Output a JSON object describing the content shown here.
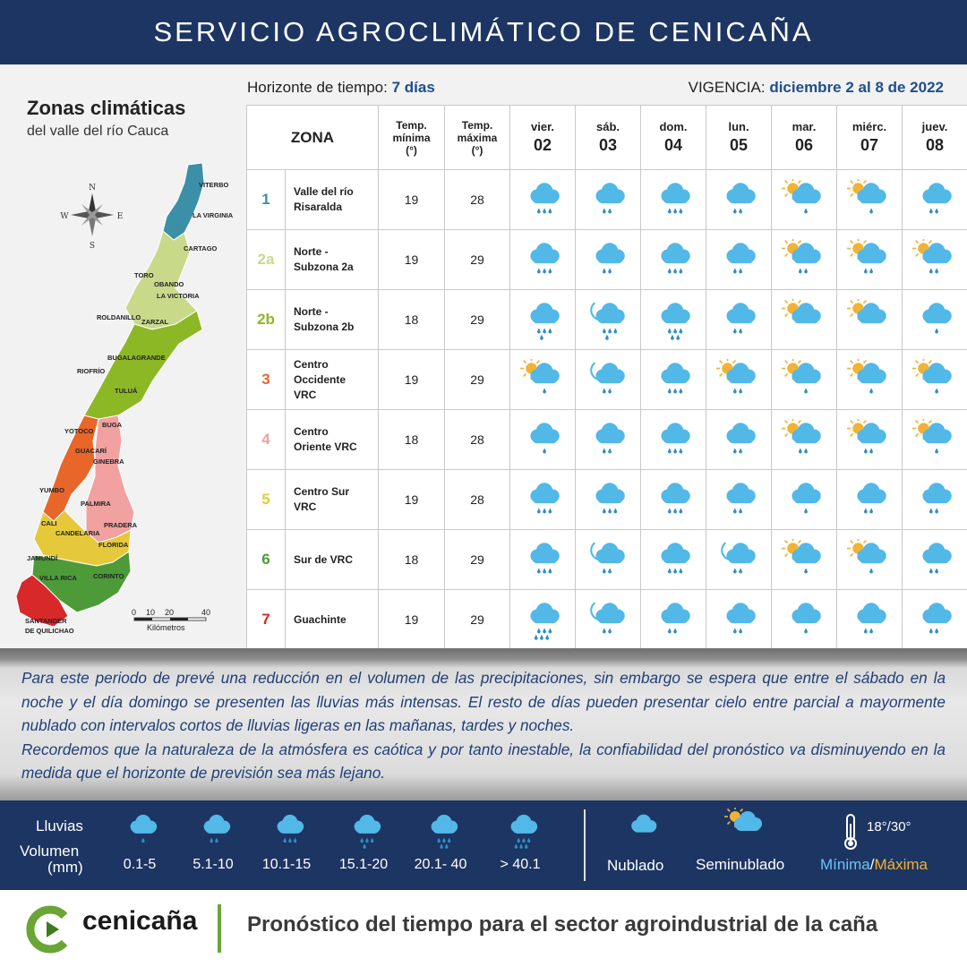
{
  "header": {
    "title": "SERVICIO AGROCLIMÁTICO DE CENICAÑA"
  },
  "map": {
    "title": "Zonas climáticas",
    "subtitle": "del valle del río Cauca",
    "compass": {
      "n": "N",
      "s": "S",
      "e": "E",
      "w": "W"
    },
    "places": [
      "VITERBO",
      "LA VIRGINIA",
      "CARTAGO",
      "TORO",
      "OBANDO",
      "LA VICTORIA",
      "ROLDANILLO",
      "ZARZAL",
      "BUGALAGRANDE",
      "RIOFRÍO",
      "TULUÁ",
      "BUGA",
      "YOTOCO",
      "GUACARÍ",
      "GINEBRA",
      "YUMBO",
      "PALMIRA",
      "CALI",
      "CANDELARIA",
      "PRADERA",
      "FLORIDA",
      "JAMUNDÍ",
      "VILLA RICA",
      "CORINTO",
      "SANTANDER",
      "DE QUILICHAO"
    ],
    "scale": {
      "ticks": [
        "0",
        "10",
        "20",
        "40"
      ],
      "unit": "Kilómetros"
    }
  },
  "horizon": {
    "label": "Horizonte de tiempo:",
    "value": "7 días"
  },
  "validity": {
    "label": "VIGENCIA:",
    "value": "diciembre 2 al 8 de 2022"
  },
  "table": {
    "headers": {
      "zona": "ZONA",
      "tmin": [
        "Temp.",
        "mínima",
        "(°)"
      ],
      "tmax": [
        "Temp.",
        "máxima",
        "(°)"
      ]
    },
    "days": [
      {
        "name": "vier.",
        "num": "02"
      },
      {
        "name": "sáb.",
        "num": "03"
      },
      {
        "name": "dom.",
        "num": "04"
      },
      {
        "name": "lun.",
        "num": "05"
      },
      {
        "name": "mar.",
        "num": "06"
      },
      {
        "name": "miérc.",
        "num": "07"
      },
      {
        "name": "juev.",
        "num": "08"
      }
    ],
    "rows": [
      {
        "id": "1",
        "color": "#3b8fa7",
        "name": [
          "Valle del río",
          "Risaralda"
        ],
        "tmin": "19",
        "tmax": "28",
        "icons": [
          "c3",
          "c2",
          "c3",
          "c2",
          "s1",
          "s1",
          "c2"
        ]
      },
      {
        "id": "2a",
        "color": "#c8d98a",
        "name": [
          "Norte -",
          "Subzona 2a"
        ],
        "tmin": "19",
        "tmax": "29",
        "icons": [
          "c3",
          "c2",
          "c3",
          "c2",
          "s2",
          "s2",
          "s2"
        ]
      },
      {
        "id": "2b",
        "color": "#8db825",
        "name": [
          "Norte -",
          "Subzona 2b"
        ],
        "tmin": "18",
        "tmax": "29",
        "icons": [
          "c4",
          "n4",
          "c5",
          "c2",
          "s0",
          "s0",
          "c1"
        ]
      },
      {
        "id": "3",
        "color": "#e8662a",
        "name": [
          "Centro",
          "Occidente",
          "VRC"
        ],
        "tmin": "19",
        "tmax": "29",
        "icons": [
          "s1",
          "n2",
          "c3",
          "s2",
          "s1",
          "s1",
          "s1"
        ]
      },
      {
        "id": "4",
        "color": "#f0a1a0",
        "name": [
          "Centro",
          "Oriente VRC"
        ],
        "tmin": "18",
        "tmax": "28",
        "icons": [
          "c1",
          "c2",
          "c3",
          "c2",
          "s2",
          "s2",
          "s1"
        ]
      },
      {
        "id": "5",
        "color": "#e6c93a",
        "name": [
          "Centro Sur",
          "VRC"
        ],
        "tmin": "19",
        "tmax": "28",
        "icons": [
          "c3",
          "c3",
          "c3",
          "c2",
          "c1",
          "c2",
          "c2"
        ]
      },
      {
        "id": "6",
        "color": "#4c9a38",
        "name": [
          "Sur de VRC"
        ],
        "tmin": "18",
        "tmax": "29",
        "icons": [
          "c3",
          "n2",
          "c3",
          "n2",
          "s1",
          "s1",
          "c2"
        ]
      },
      {
        "id": "7",
        "color": "#d7282a",
        "name": [
          "Guachinte"
        ],
        "tmin": "19",
        "tmax": "29",
        "icons": [
          "c6",
          "n2",
          "c2",
          "c2",
          "c1",
          "c2",
          "c2"
        ]
      }
    ]
  },
  "note": {
    "p1": "Para este periodo de prevé una reducción en el volumen de las precipitaciones, sin embargo se espera que entre el sábado en la noche y el día domingo se presenten las lluvias más intensas.  El resto de días pueden presentar cielo entre parcial a mayormente nublado con intervalos cortos de lluvias ligeras en las mañanas, tardes y noches.",
    "p2": "Recordemos que la naturaleza de la atmósfera es caótica y por tanto inestable, la confiabilidad del pronóstico va disminuyendo en la medida que el horizonte de previsión sea más lejano."
  },
  "legend": {
    "lluvias": "Lluvias",
    "volumen": "Volumen",
    "mm": "(mm)",
    "ranges": [
      "0.1-5",
      "5.1-10",
      "10.1-15",
      "15.1-20",
      "20.1- 40",
      "> 40.1"
    ],
    "nublado": "Nublado",
    "seminublado": "Seminublado",
    "temp_sample": "18°/30°",
    "minima": "Mínima",
    "slash": "/",
    "maxima": "Máxima",
    "colors": {
      "min": "#6cc4f0",
      "max": "#f2b233"
    }
  },
  "footer": {
    "brand": "cenicaña",
    "tagline": "Pronóstico del tiempo para el sector agroindustrial de la caña"
  },
  "colors": {
    "navy": "#1c3563",
    "cloud": "#52b8e8",
    "rain": "#2f8fc4",
    "sun": "#f2b233",
    "brand_green": "#6aa536"
  }
}
